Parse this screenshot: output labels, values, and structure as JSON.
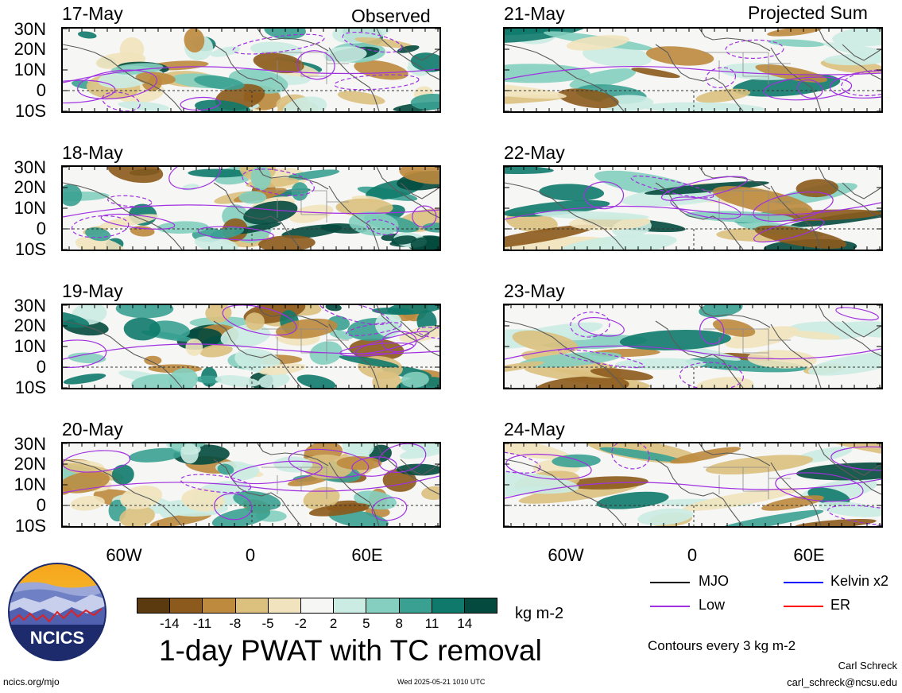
{
  "headers": {
    "observed": "Observed",
    "projected": "Projected Sum"
  },
  "panels": {
    "left": [
      {
        "date": "17-May"
      },
      {
        "date": "18-May"
      },
      {
        "date": "19-May"
      },
      {
        "date": "20-May"
      }
    ],
    "right": [
      {
        "date": "21-May"
      },
      {
        "date": "22-May"
      },
      {
        "date": "23-May"
      },
      {
        "date": "24-May"
      }
    ]
  },
  "lat_labels": [
    "30N",
    "20N",
    "10N",
    "0",
    "10S"
  ],
  "lon_labels": [
    "60W",
    "0",
    "60E"
  ],
  "colorbar": {
    "ticks": [
      "-14",
      "-11",
      "-8",
      "-5",
      "-2",
      "2",
      "5",
      "8",
      "11",
      "14"
    ],
    "unit": "kg m-2",
    "colors": [
      "#5a3a0e",
      "#8c5a1c",
      "#bd8a3e",
      "#dcc07e",
      "#f1e3bd",
      "#f6f6f4",
      "#cbece3",
      "#84cfbf",
      "#3aa192",
      "#0f7a6b",
      "#044a3e"
    ]
  },
  "title": "1-day PWAT with TC removal",
  "legend": {
    "mjo": "MJO",
    "kelvin": "Kelvin x2",
    "low": "Low",
    "er": "ER",
    "colors": {
      "mjo": "#000000",
      "kelvin": "#0000ff",
      "low": "#a030e0",
      "er": "#ff0000"
    }
  },
  "contour_note": "Contours every 3 kg m-2",
  "logo_text": "NCICS",
  "footer": {
    "url": "ncics.org/mjo",
    "timestamp": "Wed 2025-05-21 1010 UTC",
    "author": "Carl Schreck",
    "email": "carl_schreck@ncsu.edu"
  }
}
